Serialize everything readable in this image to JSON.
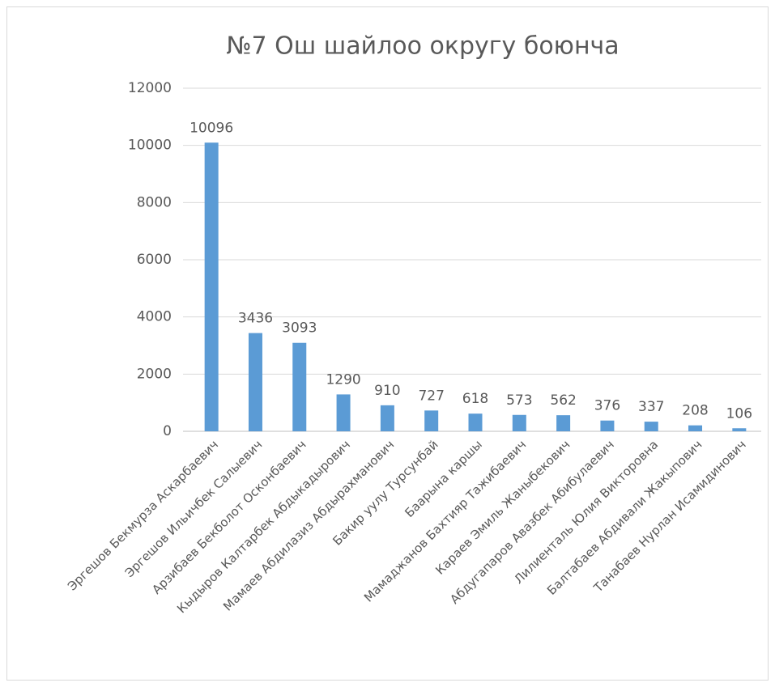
{
  "chart_data": {
    "type": "bar",
    "title": "№7 Ош шайлоо округу боюнча",
    "categories": [
      "Эргешов Бекмурза Аскарбаевич",
      "Эргешов Ильичбек Салыевич",
      "Арзибаев Бекболот Осконбаевич",
      "Кыдыров Калтарбек Абдыкадырович",
      "Мамаев Абдилазиз Абдырахманович",
      "Бакир уулу Турсунбай",
      "Баарына каршы",
      "Мамаджанов Бахтияр Тажибаевич",
      "Караев Эмиль Жаныбекович",
      "Абдугапаров Авазбек Абибулаевич",
      "Лилиенталь Юлия Викторовна",
      "Балтабаев Абдивали Жакыпович",
      "Танабаев Нурлан Исамидинович"
    ],
    "values": [
      10096,
      3436,
      3093,
      1290,
      910,
      727,
      618,
      573,
      562,
      376,
      337,
      208,
      106
    ],
    "color": "#5b9bd5",
    "ylim": [
      0,
      12000
    ],
    "yticks": [
      0,
      2000,
      4000,
      6000,
      8000,
      10000,
      12000
    ],
    "grid": true
  }
}
